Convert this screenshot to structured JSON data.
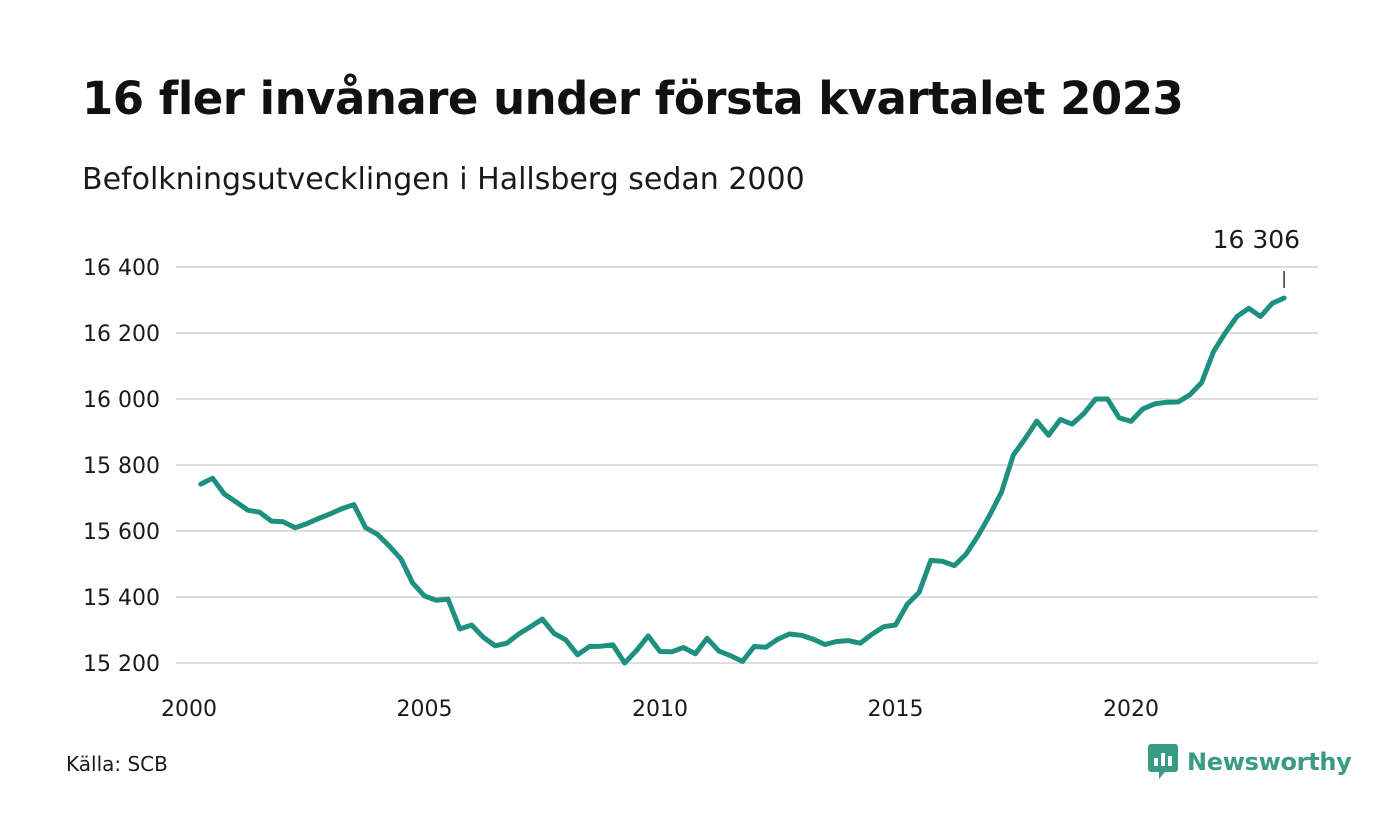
{
  "title": "16 fler invånare under första kvartalet 2023",
  "subtitle": "Befolkningsutvecklingen i Hallsberg sedan 2000",
  "source": "Källa: SCB",
  "brand": {
    "name": "Newsworthy",
    "icon": "newsworthy-logo-icon",
    "color": "#3a9b85"
  },
  "colors": {
    "line": "#1e9080",
    "grid": "#dedede",
    "text": "#1a1a1a"
  },
  "chart_data": {
    "type": "line",
    "title": "16 fler invånare under första kvartalet 2023",
    "subtitle": "Befolkningsutvecklingen i Hallsberg sedan 2000",
    "xlabel": "",
    "ylabel": "",
    "xlim": [
      2000,
      2024
    ],
    "ylim": [
      15180,
      16420
    ],
    "x_ticks": [
      2000,
      2005,
      2010,
      2015,
      2020
    ],
    "x_tick_labels": [
      "2000",
      "2005",
      "2010",
      "2015",
      "2020"
    ],
    "y_ticks": [
      15200,
      15400,
      15600,
      15800,
      16000,
      16200,
      16400
    ],
    "y_tick_labels": [
      "15 200",
      "15 400",
      "15 600",
      "15 800",
      "16 000",
      "16 200",
      "16 400"
    ],
    "grid": true,
    "legend": "none",
    "end_label": "16 306",
    "series": [
      {
        "x": [
          2000.25,
          2000.5,
          2000.75,
          2001.0,
          2001.25,
          2001.5,
          2001.75,
          2002.0,
          2002.25,
          2002.5,
          2002.75,
          2003.0,
          2003.25,
          2003.5,
          2003.75,
          2004.0,
          2004.25,
          2004.5,
          2004.75,
          2005.0,
          2005.25,
          2005.5,
          2005.75,
          2006.0,
          2006.25,
          2006.5,
          2006.75,
          2007.0,
          2007.25,
          2007.5,
          2007.75,
          2008.0,
          2008.25,
          2008.5,
          2008.75,
          2009.0,
          2009.25,
          2009.5,
          2009.75,
          2010.0,
          2010.25,
          2010.5,
          2010.75,
          2011.0,
          2011.25,
          2011.5,
          2011.75,
          2012.0,
          2012.25,
          2012.5,
          2012.75,
          2013.0,
          2013.25,
          2013.5,
          2013.75,
          2014.0,
          2014.25,
          2014.5,
          2014.75,
          2015.0,
          2015.25,
          2015.5,
          2015.75,
          2016.0,
          2016.25,
          2016.5,
          2016.75,
          2017.0,
          2017.25,
          2017.5,
          2017.75,
          2018.0,
          2018.25,
          2018.5,
          2018.75,
          2019.0,
          2019.25,
          2019.5,
          2019.75,
          2020.0,
          2020.25,
          2020.5,
          2020.75,
          2021.0,
          2021.25,
          2021.5,
          2021.75,
          2022.0,
          2022.25,
          2022.5,
          2022.75,
          2023.0,
          2023.25
        ],
        "y": [
          15742,
          15760,
          15712,
          15688,
          15663,
          15657,
          15630,
          15628,
          15610,
          15622,
          15638,
          15652,
          15668,
          15680,
          15610,
          15590,
          15555,
          15515,
          15442,
          15403,
          15390,
          15393,
          15303,
          15315,
          15278,
          15252,
          15260,
          15288,
          15310,
          15333,
          15290,
          15270,
          15225,
          15250,
          15251,
          15255,
          15200,
          15238,
          15282,
          15235,
          15234,
          15247,
          15228,
          15275,
          15236,
          15222,
          15205,
          15250,
          15248,
          15272,
          15288,
          15284,
          15272,
          15256,
          15265,
          15268,
          15260,
          15287,
          15310,
          15315,
          15378,
          15414,
          15511,
          15508,
          15495,
          15530,
          15585,
          15648,
          15718,
          15830,
          15879,
          15933,
          15890,
          15938,
          15924,
          15956,
          16000,
          16000,
          15943,
          15932,
          15970,
          15985,
          15990,
          15991,
          16013,
          16050,
          16143,
          16200,
          16250,
          16275,
          16250,
          16290,
          16306
        ]
      }
    ]
  }
}
